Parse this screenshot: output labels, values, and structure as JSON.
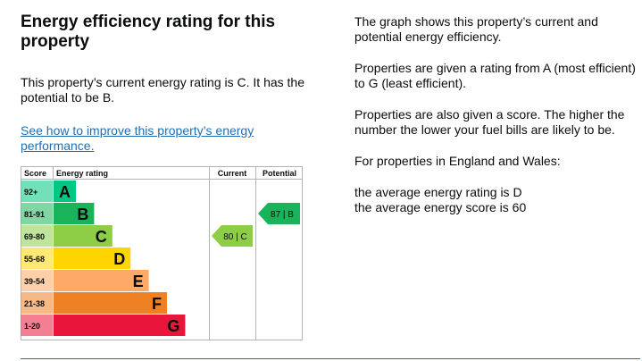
{
  "heading": "Energy efficiency rating for this property",
  "current_summary": "This property’s current energy rating is C. It has the potential to be B.",
  "improve_link": "See how to improve this property’s energy performance.",
  "chart_headers": {
    "score": "Score",
    "rating": "Energy rating",
    "current": "Current",
    "potential": "Potential"
  },
  "chart_data": {
    "type": "bar",
    "bands": [
      {
        "range": "92+",
        "letter": "A",
        "color": "#00c781"
      },
      {
        "range": "81-91",
        "letter": "B",
        "color": "#19b459"
      },
      {
        "range": "69-80",
        "letter": "C",
        "color": "#8dce46"
      },
      {
        "range": "55-68",
        "letter": "D",
        "color": "#ffd500"
      },
      {
        "range": "39-54",
        "letter": "E",
        "color": "#fcaa65"
      },
      {
        "range": "21-38",
        "letter": "F",
        "color": "#ef8023"
      },
      {
        "range": "1-20",
        "letter": "G",
        "color": "#e9153b"
      }
    ],
    "current": {
      "score": 80,
      "letter": "C",
      "label": "80 | C",
      "color": "#8dce46"
    },
    "potential": {
      "score": 87,
      "letter": "B",
      "label": "87 | B",
      "color": "#19b459"
    }
  },
  "info": {
    "p1": "The graph shows this property’s current and potential energy efficiency.",
    "p2": "Properties are given a rating from A (most efficient) to G (least efficient).",
    "p3": "Properties are also given a score. The higher the number the lower your fuel bills are likely to be.",
    "p4": "For properties in England and Wales:",
    "avg_rating": "the average energy rating is D",
    "avg_score": "the average energy score is 60"
  }
}
